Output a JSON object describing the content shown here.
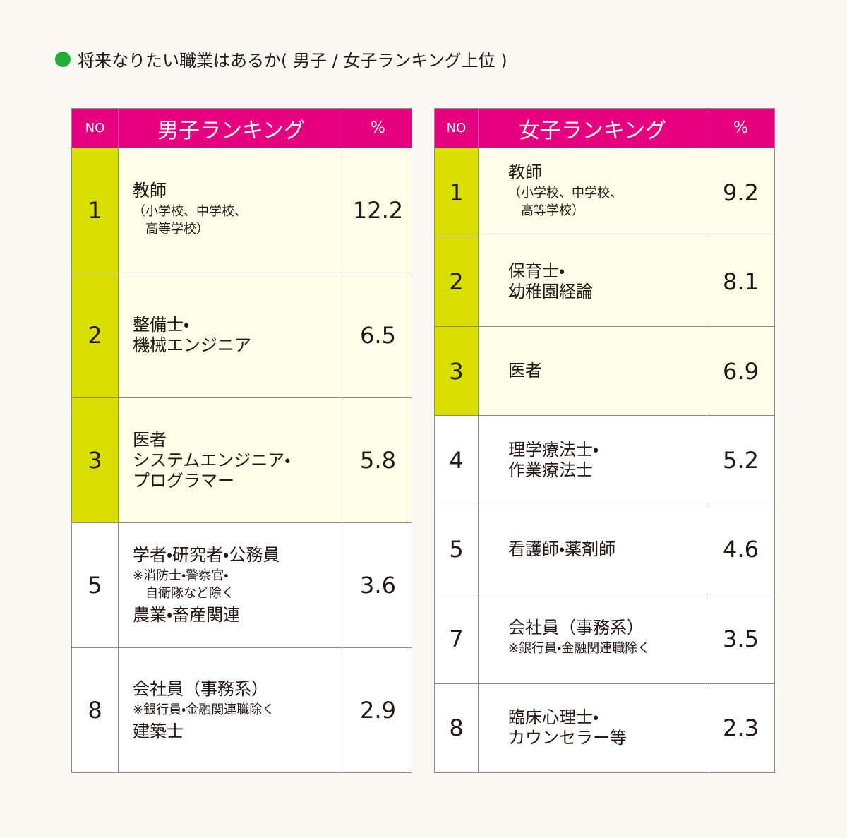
{
  "title": "将来なりたい職業はあるか( 男子 / 女子ランキング上位 )",
  "tables": [
    {
      "header": [
        "NO",
        "男子ランキング",
        "%"
      ],
      "rows": [
        {
          "no": 1,
          "job": [
            {
              "main": "教師"
            },
            {
              "note": "（小学校、中学校、\n　高等学校）"
            }
          ],
          "percent": 12.2
        },
        {
          "no": 2,
          "job": [
            {
              "main": "整備士・\n機械エンジニア"
            }
          ],
          "percent": 6.5
        },
        {
          "no": 3,
          "job": [
            {
              "main": "医者\nシステムエンジニア・\nプログラマー"
            }
          ],
          "percent": 5.8
        },
        {
          "no": 5,
          "job": [
            {
              "main": "学者・研究者・公務員"
            },
            {
              "note": "※消防士・警察官・\n　自衛隊など除く"
            },
            {
              "main": "農業・畜産関連"
            }
          ],
          "percent": 3.6
        },
        {
          "no": 8,
          "job": [
            {
              "main": "会社員（事務系）"
            },
            {
              "note": "※銀行員・金融関連職除く"
            },
            {
              "main": "建築士"
            }
          ],
          "percent": 2.9
        }
      ]
    },
    {
      "header": [
        "NO",
        "女子ランキング",
        "%"
      ],
      "rows": [
        {
          "no": 1,
          "job": [
            {
              "main": "教師"
            },
            {
              "note": "（小学校、中学校、\n　高等学校）"
            }
          ],
          "percent": 9.2
        },
        {
          "no": 2,
          "job": [
            {
              "main": "保育士・\n幼稚園経論"
            }
          ],
          "percent": 8.1
        },
        {
          "no": 3,
          "job": [
            {
              "main": "医者"
            }
          ],
          "percent": 6.9
        },
        {
          "no": 4,
          "job": [
            {
              "main": "理学療法士・\n作業療法士"
            }
          ],
          "percent": 5.2
        },
        {
          "no": 5,
          "job": [
            {
              "main": "看護師・薬剤師"
            }
          ],
          "percent": 4.6
        },
        {
          "no": 7,
          "job": [
            {
              "main": "会社員（事務系）"
            },
            {
              "note": "※銀行員・金融関連職除く"
            }
          ],
          "percent": 3.5
        },
        {
          "no": 8,
          "job": [
            {
              "main": "臨床心理士・\nカウンセラー等"
            }
          ],
          "percent": 2.3
        }
      ]
    }
  ]
}
